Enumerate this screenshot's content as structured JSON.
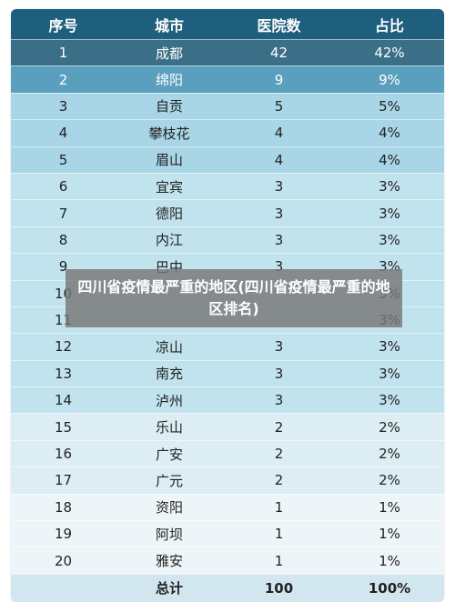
{
  "header": [
    "序号",
    "城市",
    "医院数",
    "占比"
  ],
  "rows": [
    [
      "1",
      "成都",
      "42",
      "42%"
    ],
    [
      "2",
      "绵阳",
      "9",
      "9%"
    ],
    [
      "3",
      "自贡",
      "5",
      "5%"
    ],
    [
      "4",
      "攀枝花",
      "4",
      "4%"
    ],
    [
      "5",
      "眉山",
      "4",
      "4%"
    ],
    [
      "6",
      "宜宾",
      "3",
      "3%"
    ],
    [
      "7",
      "德阳",
      "3",
      "3%"
    ],
    [
      "8",
      "内江",
      "3",
      "3%"
    ],
    [
      "9",
      "巴中",
      "3",
      "3%"
    ],
    [
      "10",
      "",
      "",
      "3%"
    ],
    [
      "11",
      "",
      "",
      "3%"
    ],
    [
      "12",
      "凉山",
      "3",
      "3%"
    ],
    [
      "13",
      "南充",
      "3",
      "3%"
    ],
    [
      "14",
      "泸州",
      "3",
      "3%"
    ],
    [
      "15",
      "乐山",
      "2",
      "2%"
    ],
    [
      "16",
      "广安",
      "2",
      "2%"
    ],
    [
      "17",
      "广元",
      "2",
      "2%"
    ],
    [
      "18",
      "资阳",
      "1",
      "1%"
    ],
    [
      "19",
      "阿坝",
      "1",
      "1%"
    ],
    [
      "20",
      "雅安",
      "1",
      "1%"
    ]
  ],
  "total": [
    "",
    "总计",
    "100",
    "100%"
  ],
  "overlay_title": "四川省疫情最严重的地区(四川省疫情最严重的地区排名)",
  "colors": {
    "header": "#1f5f7e",
    "row1": "#3a6f87",
    "row2": "#5a9fbe",
    "tier3": "#a8d6e6",
    "tier4": "#c1e3ee",
    "tier5": "#dcedf3",
    "tier6": "#eef5f8"
  }
}
